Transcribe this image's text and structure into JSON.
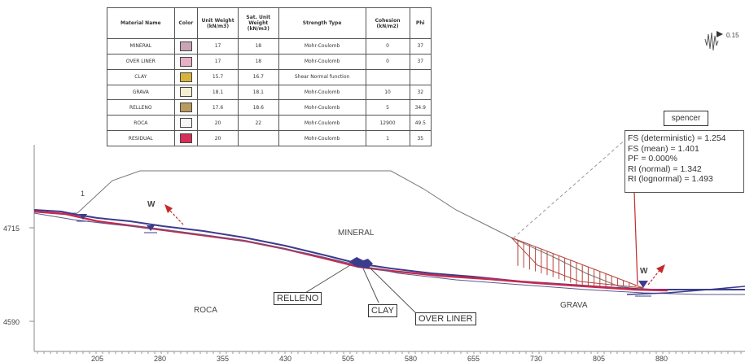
{
  "material_table": {
    "headers": [
      "Material Name",
      "Color",
      "Unit Weight (kN/m3)",
      "Sat. Unit Weight (kN/m3)",
      "Strength Type",
      "Cohesion (kN/m2)",
      "Phi"
    ],
    "rows": [
      {
        "name": "MINERAL",
        "color": "#c9a3b6",
        "unit_weight": "17",
        "sat_unit_weight": "18",
        "strength_type": "Mohr-Coulomb",
        "cohesion": "0",
        "phi": "37"
      },
      {
        "name": "OVER LINER",
        "color": "#e8b0c4",
        "unit_weight": "17",
        "sat_unit_weight": "18",
        "strength_type": "Mohr-Coulomb",
        "cohesion": "0",
        "phi": "37"
      },
      {
        "name": "CLAY",
        "color": "#d8b23a",
        "unit_weight": "15.7",
        "sat_unit_weight": "16.7",
        "strength_type": "Shear Normal function",
        "cohesion": "",
        "phi": ""
      },
      {
        "name": "GRAVA",
        "color": "#f4eed2",
        "unit_weight": "18.1",
        "sat_unit_weight": "18.1",
        "strength_type": "Mohr-Coulomb",
        "cohesion": "10",
        "phi": "32"
      },
      {
        "name": "RELLENO",
        "color": "#b99a5c",
        "unit_weight": "17.6",
        "sat_unit_weight": "18.6",
        "strength_type": "Mohr-Coulomb",
        "cohesion": "5",
        "phi": "34.9"
      },
      {
        "name": "ROCA",
        "color": "#f6f6f8",
        "unit_weight": "20",
        "sat_unit_weight": "22",
        "strength_type": "Mohr-Coulomb",
        "cohesion": "12900",
        "phi": "49.5"
      },
      {
        "name": "RESIDUAL",
        "color": "#d6305a",
        "unit_weight": "20",
        "sat_unit_weight": "",
        "strength_type": "Mohr-Coulomb",
        "cohesion": "1",
        "phi": "35"
      }
    ]
  },
  "top_right_indicator": "0.15",
  "method": "spencer",
  "results": [
    "FS (deterministic) = 1.254",
    "FS (mean) = 1.401",
    "PF = 0.000%",
    "RI (normal) = 1.342",
    "RI (lognormal) = 1.493"
  ],
  "elevation_labels": [
    "4715",
    "4590"
  ],
  "x_ticks": [
    "205",
    "280",
    "355",
    "430",
    "505",
    "580",
    "655",
    "730",
    "805",
    "880"
  ],
  "slip_label": "1",
  "water_marker": "W",
  "materials_in_section": {
    "mineral": "MINERAL",
    "roca": "ROCA",
    "grava": "GRAVA",
    "relleno": "RELLENO",
    "clay": "CLAY",
    "over_liner": "OVER LINER"
  },
  "colors": {
    "liner_red": "#c8284e",
    "liner_blue": "#3c3c8c",
    "slice_hatch": "#b5443c",
    "water_arrow": "#c42a2a",
    "frame": "#8a8a8a"
  }
}
